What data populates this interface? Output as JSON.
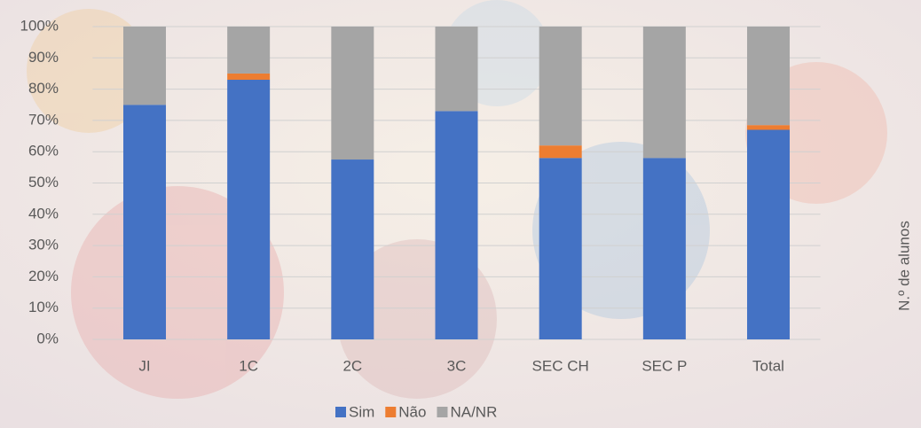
{
  "chart_data": {
    "type": "stacked_bar",
    "y2_label": "N.º de alunos",
    "categories": [
      "JI",
      "1C",
      "2C",
      "3C",
      "SEC CH",
      "SEC P",
      "Total"
    ],
    "series": [
      {
        "name": "Sim",
        "color": "#4472c4",
        "values": [
          75,
          83,
          57.5,
          73,
          58,
          58,
          67
        ]
      },
      {
        "name": "Não",
        "color": "#ed7d31",
        "values": [
          0,
          2,
          0,
          0,
          4,
          0,
          1.5
        ]
      },
      {
        "name": "NA/NR",
        "color": "#a5a5a5",
        "values": [
          25,
          15,
          42.5,
          27,
          38,
          42,
          31.5
        ]
      }
    ],
    "ylim": [
      0,
      100
    ],
    "yticks": [
      {
        "value": 0,
        "label": "0%"
      },
      {
        "value": 10,
        "label": "10%"
      },
      {
        "value": 20,
        "label": "20%"
      },
      {
        "value": 30,
        "label": "30%"
      },
      {
        "value": 40,
        "label": "40%"
      },
      {
        "value": 50,
        "label": "50%"
      },
      {
        "value": 60,
        "label": "60%"
      },
      {
        "value": 70,
        "label": "70%"
      },
      {
        "value": 80,
        "label": "80%"
      },
      {
        "value": 90,
        "label": "90%"
      },
      {
        "value": 100,
        "label": "100%"
      }
    ],
    "grid": true,
    "legend": "bottom"
  }
}
